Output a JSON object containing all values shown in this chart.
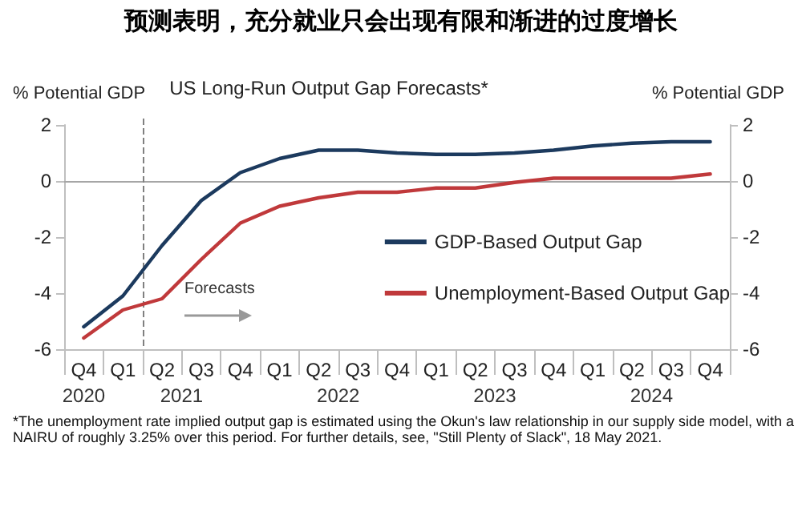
{
  "chart_data": {
    "type": "line",
    "title": "预测表明，充分就业只会出现有限和渐进的过度增长",
    "subtitle": "US Long-Run Output Gap Forecasts*",
    "ylabel": "% Potential GDP",
    "y2label": "% Potential GDP",
    "categories": [
      "Q4",
      "Q1",
      "Q2",
      "Q3",
      "Q4",
      "Q1",
      "Q2",
      "Q3",
      "Q4",
      "Q1",
      "Q2",
      "Q3",
      "Q4",
      "Q1",
      "Q2",
      "Q3",
      "Q4"
    ],
    "series": [
      {
        "name": "GDP-Based Output Gap",
        "color": "#1c3a5e",
        "values": [
          -5.2,
          -4.1,
          -2.3,
          -0.7,
          0.3,
          0.8,
          1.1,
          1.1,
          1.0,
          0.95,
          0.95,
          1.0,
          1.1,
          1.25,
          1.35,
          1.4,
          1.4
        ]
      },
      {
        "name": "Unemployment-Based Output Gap",
        "color": "#c0393b",
        "values": [
          -5.6,
          -4.6,
          -4.2,
          -2.8,
          -1.5,
          -0.9,
          -0.6,
          -0.4,
          -0.4,
          -0.25,
          -0.25,
          -0.05,
          0.1,
          0.1,
          0.1,
          0.1,
          0.25
        ]
      }
    ],
    "ylim": [
      -6,
      2
    ],
    "yticks": [
      -6,
      -4,
      -2,
      0,
      2
    ],
    "y2lim": [
      -6,
      2
    ],
    "y2ticks": [
      -6,
      -4,
      -2,
      0,
      2
    ],
    "ref_lines": [
      {
        "axis": "y",
        "value": 0,
        "color": "#a6a6a6",
        "line_style": "solid"
      },
      {
        "axis": "x",
        "value": "Q2",
        "color": "#808080",
        "line_style": "dashed"
      }
    ],
    "annotations": [
      "Forecasts",
      "2020",
      "2021",
      "2022",
      "2023",
      "2024",
      "*The unemployment rate implied output gap is estimated using the Okun's law relationship in our supply side model, with a NAIRU of roughly 3.25% over this period. For further details, see, \"Still Plenty of Slack\", 18 May 2021."
    ],
    "legend": "right",
    "grid": false,
    "marker": "none",
    "line_style": "solid"
  }
}
